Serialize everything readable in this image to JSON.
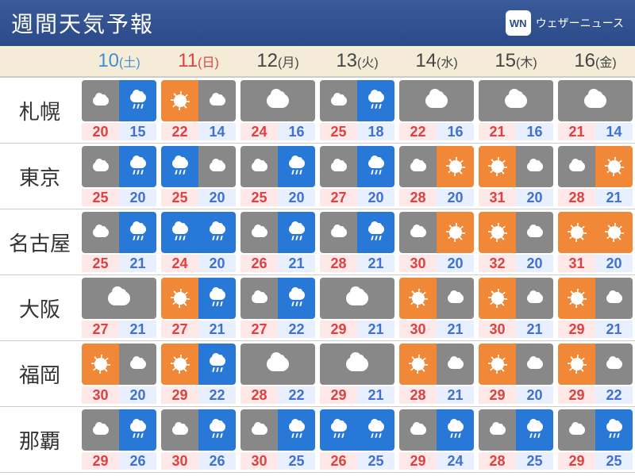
{
  "header": {
    "title": "週間天気予報",
    "logo_text": "ウェザーニュース",
    "logo_abbr": "WN"
  },
  "colors": {
    "header_bg": "#2a4a8a",
    "date_bg": "#f5ecd8",
    "sat": "#4090d0",
    "sun": "#e04040",
    "wk": "#444",
    "hi_bg": "#ffe8e8",
    "hi_fg": "#e04040",
    "lo_bg": "#e8f0ff",
    "lo_fg": "#4070d0",
    "icon_gray": "#888",
    "icon_blue": "#2878d8",
    "icon_orange": "#f08838"
  },
  "dates": [
    {
      "num": "10",
      "dow": "(土)",
      "color": "#4090d0"
    },
    {
      "num": "11",
      "dow": "(日)",
      "color": "#e04040"
    },
    {
      "num": "12",
      "dow": "(月)",
      "color": "#444"
    },
    {
      "num": "13",
      "dow": "(火)",
      "color": "#444"
    },
    {
      "num": "14",
      "dow": "(水)",
      "color": "#444"
    },
    {
      "num": "15",
      "dow": "(木)",
      "color": "#444"
    },
    {
      "num": "16",
      "dow": "(金)",
      "color": "#444"
    }
  ],
  "cities": [
    {
      "name": "札幌",
      "forecasts": [
        {
          "hi": 20,
          "lo": 15,
          "w": [
            "cloudy",
            "rain"
          ]
        },
        {
          "hi": 22,
          "lo": 14,
          "w": [
            "sunny",
            "cloudy"
          ]
        },
        {
          "hi": 24,
          "lo": 16,
          "w": [
            "cloudy"
          ]
        },
        {
          "hi": 25,
          "lo": 18,
          "w": [
            "cloudy",
            "rain"
          ]
        },
        {
          "hi": 22,
          "lo": 16,
          "w": [
            "cloudy"
          ]
        },
        {
          "hi": 21,
          "lo": 16,
          "w": [
            "cloudy"
          ]
        },
        {
          "hi": 21,
          "lo": 14,
          "w": [
            "cloudy"
          ]
        }
      ]
    },
    {
      "name": "東京",
      "forecasts": [
        {
          "hi": 25,
          "lo": 20,
          "w": [
            "cloudy",
            "rain"
          ]
        },
        {
          "hi": 25,
          "lo": 20,
          "w": [
            "rain",
            "cloudy"
          ]
        },
        {
          "hi": 25,
          "lo": 20,
          "w": [
            "cloudy",
            "rain"
          ]
        },
        {
          "hi": 27,
          "lo": 20,
          "w": [
            "cloudy",
            "rain"
          ]
        },
        {
          "hi": 28,
          "lo": 20,
          "w": [
            "cloudy",
            "sunny"
          ]
        },
        {
          "hi": 31,
          "lo": 20,
          "w": [
            "sunny",
            "cloudy"
          ]
        },
        {
          "hi": 28,
          "lo": 21,
          "w": [
            "cloudy",
            "sunny"
          ]
        }
      ]
    },
    {
      "name": "名古屋",
      "forecasts": [
        {
          "hi": 25,
          "lo": 21,
          "w": [
            "cloudy",
            "rain"
          ]
        },
        {
          "hi": 24,
          "lo": 20,
          "w": [
            "rain",
            "rain"
          ]
        },
        {
          "hi": 26,
          "lo": 21,
          "w": [
            "cloudy",
            "rain"
          ]
        },
        {
          "hi": 28,
          "lo": 21,
          "w": [
            "cloudy",
            "rain"
          ]
        },
        {
          "hi": 30,
          "lo": 20,
          "w": [
            "cloudy",
            "sunny"
          ]
        },
        {
          "hi": 32,
          "lo": 20,
          "w": [
            "sunny",
            "cloudy"
          ]
        },
        {
          "hi": 31,
          "lo": 20,
          "w": [
            "sunny",
            "sunny"
          ]
        }
      ]
    },
    {
      "name": "大阪",
      "forecasts": [
        {
          "hi": 27,
          "lo": 21,
          "w": [
            "cloudy"
          ]
        },
        {
          "hi": 27,
          "lo": 21,
          "w": [
            "sunny",
            "rain"
          ]
        },
        {
          "hi": 27,
          "lo": 22,
          "w": [
            "cloudy",
            "rain"
          ]
        },
        {
          "hi": 29,
          "lo": 21,
          "w": [
            "cloudy"
          ]
        },
        {
          "hi": 30,
          "lo": 21,
          "w": [
            "sunny",
            "cloudy"
          ]
        },
        {
          "hi": 30,
          "lo": 21,
          "w": [
            "sunny",
            "cloudy"
          ]
        },
        {
          "hi": 29,
          "lo": 21,
          "w": [
            "sunny",
            "cloudy"
          ]
        }
      ]
    },
    {
      "name": "福岡",
      "forecasts": [
        {
          "hi": 30,
          "lo": 20,
          "w": [
            "sunny",
            "cloudy"
          ]
        },
        {
          "hi": 29,
          "lo": 22,
          "w": [
            "sunny",
            "rain"
          ]
        },
        {
          "hi": 28,
          "lo": 22,
          "w": [
            "cloudy"
          ]
        },
        {
          "hi": 29,
          "lo": 21,
          "w": [
            "cloudy"
          ]
        },
        {
          "hi": 28,
          "lo": 21,
          "w": [
            "sunny",
            "cloudy"
          ]
        },
        {
          "hi": 29,
          "lo": 20,
          "w": [
            "sunny",
            "cloudy"
          ]
        },
        {
          "hi": 29,
          "lo": 22,
          "w": [
            "sunny",
            "cloudy"
          ]
        }
      ]
    },
    {
      "name": "那覇",
      "forecasts": [
        {
          "hi": 29,
          "lo": 26,
          "w": [
            "cloudy",
            "rain"
          ]
        },
        {
          "hi": 30,
          "lo": 26,
          "w": [
            "cloudy",
            "rain"
          ]
        },
        {
          "hi": 30,
          "lo": 25,
          "w": [
            "cloudy",
            "rain"
          ]
        },
        {
          "hi": 26,
          "lo": 25,
          "w": [
            "rain",
            "rain"
          ]
        },
        {
          "hi": 29,
          "lo": 24,
          "w": [
            "cloudy",
            "rain"
          ]
        },
        {
          "hi": 28,
          "lo": 25,
          "w": [
            "cloudy",
            "rain"
          ]
        },
        {
          "hi": 29,
          "lo": 25,
          "w": [
            "cloudy",
            "rain"
          ]
        }
      ]
    }
  ]
}
